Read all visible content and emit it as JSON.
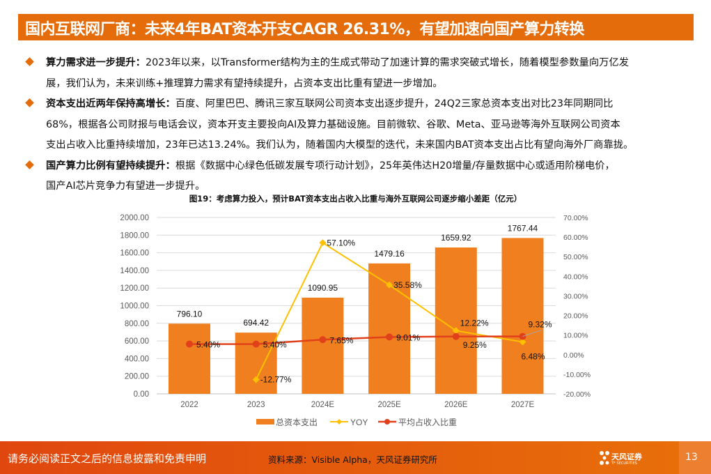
{
  "header": {
    "title": "国内互联网厂商：未来4年BAT资本开支CAGR 26.31%，有望加速向国产算力转换"
  },
  "bullets": [
    {
      "label": "算力需求进一步提升：",
      "lines": [
        "2023年以来，以Transformer结构为主的生成式带动了加速计算的需求突破式增长，随着模型参数量向万亿发",
        "展，我们认为，未来训练+推理算力需求有望持续提升，占资本支出比重有望进一步增加。"
      ]
    },
    {
      "label": "资本支出近两年保持高增长：",
      "lines": [
        "百度、阿里巴巴、腾讯三家互联网公司资本支出逐步提升，24Q2三家总资本支出对比23年同期同比",
        "68%，根据各公司财报与电话会议，资本开支主要投向AI及算力基础设施。目前微软、谷歌、Meta、亚马逊等海外互联网公司资本",
        "支出占收入比重持续增加，23年已达13.24%。我们认为，随着国内大模型的迭代，未来国内BAT资本支出占比有望向海外厂商靠拢。"
      ]
    },
    {
      "label": "国产算力比例有望持续提升：",
      "lines": [
        "根据《数据中心绿色低碳发展专项行动计划》，25年英伟达H20增量/存量数据中心或适用阶梯电价，",
        "国产AI芯片竞争力有望进一步提升。"
      ]
    }
  ],
  "chart_data": {
    "type": "bar+line",
    "title": "图19：考虑算力投入，预计BAT资本支出占收入比重与海外互联网公司逐步缩小差距（亿元）",
    "categories": [
      "2022",
      "2023",
      "2024E",
      "2025E",
      "2026E",
      "2027E"
    ],
    "series": [
      {
        "name": "总资本支出",
        "type": "bar",
        "axis": "left",
        "color": "#F0801F",
        "values": [
          796.1,
          694.42,
          1090.95,
          1479.16,
          1659.92,
          1767.44
        ],
        "labels": [
          "796.10",
          "694.42",
          "1090.95",
          "1479.16",
          "1659.92",
          "1767.44"
        ]
      },
      {
        "name": "YOY",
        "type": "line",
        "axis": "right",
        "color": "#FFC000",
        "values": [
          null,
          -12.77,
          57.1,
          35.58,
          12.22,
          6.48
        ],
        "labels": [
          "",
          "-12.77%",
          "57.10%",
          "35.58%",
          "12.22%",
          "6.48%"
        ]
      },
      {
        "name": "平均占收入比重",
        "type": "line",
        "axis": "right",
        "color": "#E0401A",
        "values": [
          5.4,
          5.4,
          7.65,
          9.01,
          9.25,
          9.32
        ],
        "labels": [
          "5.40%",
          "5.40%",
          "7.65%",
          "9.01%",
          "9.25%",
          "9.32%"
        ]
      }
    ],
    "yleft": {
      "range": [
        0,
        2000
      ],
      "ticks": [
        "0.00",
        "200.00",
        "400.00",
        "600.00",
        "800.00",
        "1000.00",
        "1200.00",
        "1400.00",
        "1600.00",
        "1800.00",
        "2000.00"
      ]
    },
    "yright": {
      "range": [
        -20,
        70
      ],
      "ticks": [
        "-20.00%",
        "-10.00%",
        "0.00%",
        "10.00%",
        "20.00%",
        "30.00%",
        "40.00%",
        "50.00%",
        "60.00%",
        "70.00%"
      ]
    },
    "grid": true,
    "legend": "bottom"
  },
  "footer": {
    "disclaimer": "请务必阅读正文之后的信息披露和免责申明",
    "source": "资料来源：Visible Alpha，天风证券研究所",
    "logo_text": "天风证券",
    "logo_sub": "TF SECURITIES",
    "page": "13"
  }
}
